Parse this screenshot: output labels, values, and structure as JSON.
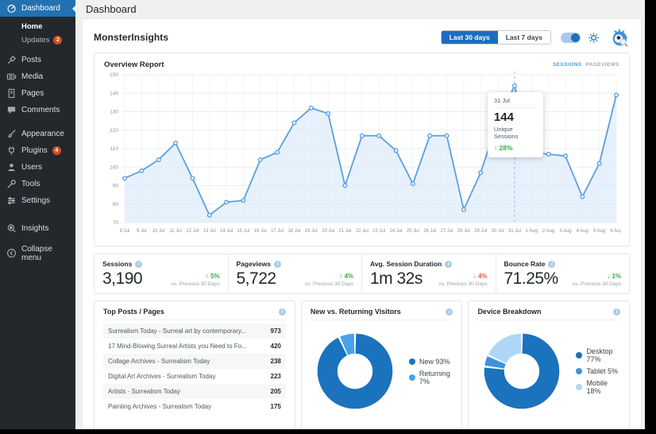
{
  "page_title": "Dashboard",
  "sidebar": {
    "items": [
      {
        "label": "Dashboard"
      },
      {
        "label": "Home"
      },
      {
        "label": "Updates",
        "badge": "2"
      },
      {
        "label": "Posts"
      },
      {
        "label": "Media"
      },
      {
        "label": "Pages"
      },
      {
        "label": "Comments"
      },
      {
        "label": "Appearance"
      },
      {
        "label": "Plugins",
        "badge": "4"
      },
      {
        "label": "Users"
      },
      {
        "label": "Tools"
      },
      {
        "label": "Settings"
      },
      {
        "label": "Insights"
      },
      {
        "label": "Collapse menu"
      }
    ]
  },
  "header": {
    "brand": "MonsterInsights",
    "range_buttons": [
      {
        "label": "Last 30 days",
        "active": true
      },
      {
        "label": "Last 7 days",
        "active": false
      }
    ]
  },
  "overview": {
    "title": "Overview Report",
    "tabs": [
      {
        "label": "SESSIONS",
        "active": true
      },
      {
        "label": "PAGEVIEWS",
        "active": false
      }
    ]
  },
  "colors": {
    "positive": "#2fae4e",
    "negative": "#e2544c",
    "accent_blue": "#1c6dc0"
  },
  "chart_data": [
    {
      "type": "line",
      "title": "Overview Report",
      "series_name": "Unique Sessions",
      "categories": [
        "8 Jul",
        "9 Jul",
        "10 Jul",
        "11 Jul",
        "12 Jul",
        "13 Jul",
        "14 Jul",
        "15 Jul",
        "16 Jul",
        "17 Jul",
        "18 Jul",
        "19 Jul",
        "20 Jul",
        "21 Jul",
        "22 Jul",
        "23 Jul",
        "24 Jul",
        "25 Jul",
        "26 Jul",
        "27 Jul",
        "28 Jul",
        "29 Jul",
        "30 Jul",
        "31 Jul",
        "1 Aug",
        "2 Aug",
        "3 Aug",
        "4 Aug",
        "5 Aug",
        "6 Aug"
      ],
      "values": [
        94,
        98,
        104,
        113,
        94,
        74,
        81,
        82,
        104,
        108,
        124,
        132,
        129,
        90,
        117,
        117,
        109,
        91,
        117,
        117,
        77,
        97,
        125,
        144,
        108,
        107,
        106,
        84,
        102,
        139
      ],
      "ylim": [
        70,
        150
      ],
      "ytick_step": 10,
      "grid": true,
      "legend_position": "none",
      "line_color": "#5b9fe0",
      "fill_color": "#ddebfa",
      "tooltip": {
        "date": "31 Jul",
        "value": "144",
        "label": "Unique Sessions",
        "arrow": "↑",
        "delta": "28%"
      }
    },
    {
      "type": "pie",
      "donut": true,
      "title": "New vs. Returning Visitors",
      "legend_position": "right",
      "slices": [
        {
          "label": "New",
          "value": 93,
          "color": "#1b72bd"
        },
        {
          "label": "Returning",
          "value": 7,
          "color": "#4aa1e8"
        }
      ]
    },
    {
      "type": "pie",
      "donut": true,
      "title": "Device Breakdown",
      "legend_position": "right",
      "slices": [
        {
          "label": "Desktop",
          "value": 77,
          "color": "#1b72bd"
        },
        {
          "label": "Tablet",
          "value": 5,
          "color": "#3e92dc"
        },
        {
          "label": "Mobile",
          "value": 18,
          "color": "#aed6f6"
        }
      ]
    }
  ],
  "stats": [
    {
      "label": "Sessions",
      "value": "3,190",
      "arrow": "↑",
      "delta": "5%",
      "good": true,
      "caption": "vs. Previous 30 Days"
    },
    {
      "label": "Pageviews",
      "value": "5,722",
      "arrow": "↑",
      "delta": "4%",
      "good": true,
      "caption": "vs. Previous 30 Days"
    },
    {
      "label": "Avg. Session Duration",
      "value": "1m 32s",
      "arrow": "↓",
      "delta": "4%",
      "good": false,
      "caption": "vs. Previous 30 Days"
    },
    {
      "label": "Bounce Rate",
      "value": "71.25%",
      "arrow": "↓",
      "delta": "1%",
      "good": true,
      "caption": "vs. Previous 30 Days"
    }
  ],
  "panels": {
    "top_posts": {
      "title": "Top Posts / Pages",
      "rows": [
        {
          "title": "Surrealism Today - Surreal art by contemporary...",
          "value": "973"
        },
        {
          "title": "17 Mind-Blowing Surreal Artists you Need to Fo...",
          "value": "420"
        },
        {
          "title": "Collage Archives - Surrealism Today",
          "value": "238"
        },
        {
          "title": "Digital Art Archives - Surrealism Today",
          "value": "223"
        },
        {
          "title": "Artists - Surrealism Today",
          "value": "205"
        },
        {
          "title": "Painting Archives - Surrealism Today",
          "value": "175"
        }
      ]
    }
  }
}
